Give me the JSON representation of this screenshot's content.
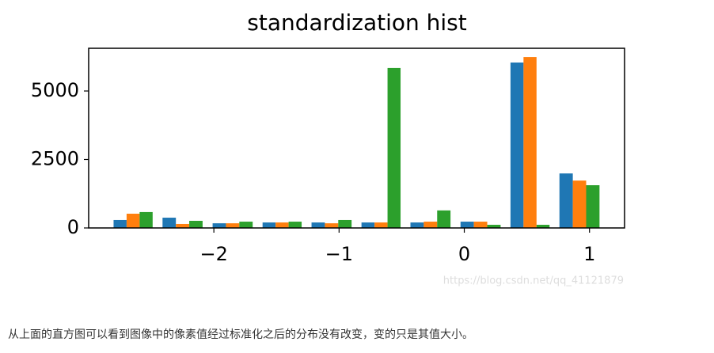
{
  "chart_data": {
    "type": "histogram",
    "title": "standardization hist",
    "bins": [
      -2.84,
      -2.45,
      -2.05,
      -1.65,
      -1.26,
      -0.86,
      -0.47,
      -0.07,
      0.33,
      0.72,
      1.12
    ],
    "series": [
      {
        "color": "#1f77b4",
        "values": [
          290,
          375,
          170,
          200,
          200,
          200,
          200,
          230,
          6040,
          1990
        ]
      },
      {
        "color": "#ff7f0e",
        "values": [
          520,
          145,
          170,
          200,
          170,
          200,
          230,
          230,
          6240,
          1730
        ]
      },
      {
        "color": "#2ca02c",
        "values": [
          580,
          260,
          230,
          230,
          290,
          5840,
          640,
          115,
          115,
          1560
        ]
      }
    ],
    "xlim": [
      -3.0,
      1.28
    ],
    "ylim": [
      0,
      6560
    ],
    "xticks": [
      {
        "value": -2,
        "label": "−2"
      },
      {
        "value": -1,
        "label": "−1"
      },
      0,
      1
    ],
    "yticks": [
      0,
      2500,
      5000
    ],
    "watermark": "https://blog.csdn.net/qq_41121879"
  },
  "caption": "从上面的直方图可以看到图像中的像素值经过标准化之后的分布没有改变，变的只是其值大小。"
}
